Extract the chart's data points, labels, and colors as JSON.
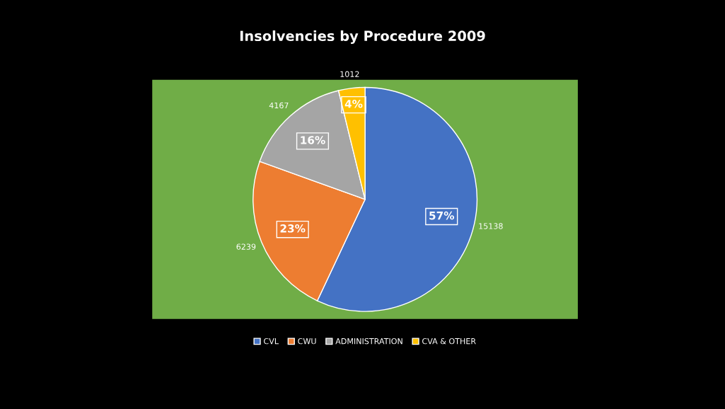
{
  "chart_data": {
    "type": "pie",
    "title": "Insolvencies by Procedure 2009",
    "categories": [
      "CVL",
      "CWU",
      "ADMINISTRATION",
      "CVA & OTHER"
    ],
    "values": [
      15138,
      6239,
      4167,
      1012
    ],
    "colors": [
      "#4472c4",
      "#ed7d31",
      "#a5a5a5",
      "#ffc000"
    ],
    "data_labels": true,
    "annotations": [
      "57%",
      "23%",
      "16%",
      "4%"
    ],
    "legend": "bottom"
  }
}
